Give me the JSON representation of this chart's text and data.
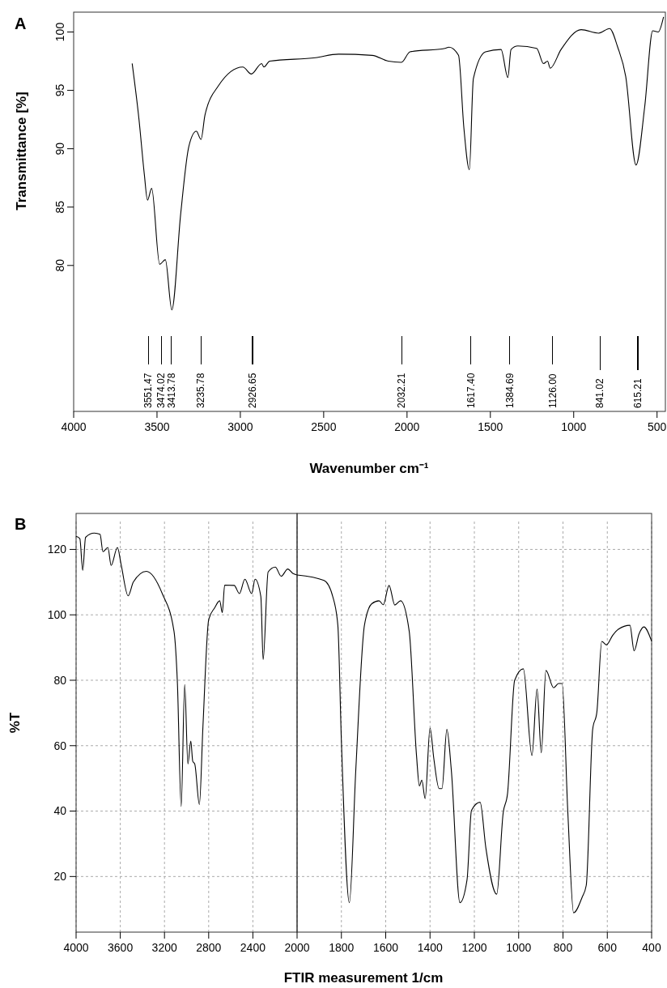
{
  "chart_data": [
    {
      "type": "line",
      "title": "A",
      "xlabel": "Wavenumber cm⁻¹",
      "ylabel": "Transmittance [%]",
      "xlim": [
        4000,
        450
      ],
      "ylim": [
        67.5,
        101.7
      ],
      "xticks": [
        4000,
        3500,
        3000,
        2500,
        2000,
        1500,
        1000,
        500
      ],
      "yticks": [
        80,
        85,
        90,
        95,
        100
      ],
      "grid": false,
      "series": [
        {
          "color": "#000000",
          "x": [
            3649,
            3608,
            3576,
            3557,
            3532,
            3484,
            3450,
            3411,
            3358,
            3309,
            3264,
            3236,
            3212,
            3131,
            2985,
            2934,
            2872,
            2859,
            2824,
            2549,
            2411,
            2209,
            2112,
            2034,
            1982,
            1772,
            1748,
            1691,
            1659,
            1626,
            1602,
            1529,
            1436,
            1395,
            1376,
            1335,
            1222,
            1181,
            1157,
            1141,
            1076,
            955,
            850,
            785,
            736,
            688,
            626,
            574,
            526,
            493,
            461
          ],
          "values": [
            97.3,
            92.5,
            87.8,
            85.6,
            86.6,
            80.1,
            80.5,
            76.2,
            84.4,
            90.2,
            91.5,
            90.8,
            92.9,
            95.4,
            97.0,
            96.4,
            97.3,
            97.0,
            97.5,
            97.8,
            98.1,
            98.0,
            97.5,
            97.4,
            98.3,
            98.6,
            98.7,
            98.0,
            91.8,
            88.2,
            96.0,
            98.3,
            98.5,
            96.1,
            98.5,
            98.8,
            98.6,
            97.3,
            97.5,
            96.9,
            98.5,
            100.2,
            99.9,
            100.3,
            98.7,
            96.2,
            88.6,
            93.6,
            100.1,
            100.0,
            101.3
          ]
        }
      ],
      "ref_lines": [
        {
          "axis": "x",
          "value": 3551.47,
          "label": "3551.47"
        },
        {
          "axis": "x",
          "value": 3474.02,
          "label": "3474.02"
        },
        {
          "axis": "x",
          "value": 3413.78,
          "label": "3413.78"
        },
        {
          "axis": "x",
          "value": 3235.78,
          "label": "3235.78"
        },
        {
          "axis": "x",
          "value": 2926.65,
          "label": "2926.65"
        },
        {
          "axis": "x",
          "value": 2032.21,
          "label": "2032.21"
        },
        {
          "axis": "x",
          "value": 1617.4,
          "label": "1617.40"
        },
        {
          "axis": "x",
          "value": 1384.69,
          "label": "1384.69"
        },
        {
          "axis": "x",
          "value": 1126.0,
          "label": "1126.00"
        },
        {
          "axis": "x",
          "value": 841.02,
          "label": "841.02"
        },
        {
          "axis": "x",
          "value": 615.21,
          "label": "615.21"
        }
      ]
    },
    {
      "type": "line",
      "title": "B",
      "ylabel": "%T",
      "xlim": [
        4000,
        2000
      ],
      "ylim": [
        3,
        131
      ],
      "xticks": [
        4000,
        3600,
        3200,
        2800,
        2400,
        2000
      ],
      "yticks": [
        20,
        40,
        60,
        80,
        100,
        120
      ],
      "grid": true,
      "series": [
        {
          "color": "#000000",
          "x": [
            4000,
            3966,
            3940,
            3914,
            3835,
            3783,
            3757,
            3712,
            3683,
            3626,
            3592,
            3529,
            3482,
            3364,
            3220,
            3114,
            3083,
            3049,
            3017,
            2988,
            2962,
            2944,
            2926,
            2884,
            2852,
            2800,
            2747,
            2700,
            2677,
            2655,
            2569,
            2522,
            2472,
            2411,
            2380,
            2328,
            2307,
            2262,
            2197,
            2144,
            2084,
            2039,
            2000
          ],
          "values": [
            124.0,
            123.3,
            113.6,
            123.7,
            125.0,
            124.6,
            119.3,
            120.6,
            115.1,
            120.6,
            115.3,
            105.8,
            110.0,
            113.3,
            106.5,
            95.0,
            79.1,
            41.4,
            78.7,
            54.4,
            61.4,
            55.2,
            54.4,
            42.0,
            65.8,
            98.5,
            102.1,
            104.3,
            100.7,
            109.1,
            109.0,
            106.5,
            110.9,
            106.5,
            110.9,
            105.6,
            86.3,
            113.1,
            114.6,
            111.8,
            114.0,
            112.7,
            112.2
          ]
        }
      ]
    },
    {
      "type": "line",
      "xlabel": "FTIR measurement 1/cm",
      "xlim": [
        2000,
        400
      ],
      "ylim": [
        3,
        131
      ],
      "xticks": [
        1800,
        1600,
        1400,
        1200,
        1000,
        800,
        600,
        400
      ],
      "yticks": [
        20,
        40,
        60,
        80,
        100,
        120
      ],
      "grid": true,
      "tick_labels": "x",
      "series": [
        {
          "color": "#000000",
          "x": [
            2000,
            1878,
            1839,
            1816,
            1800,
            1764,
            1735,
            1696,
            1663,
            1630,
            1611,
            1585,
            1559,
            1533,
            1494,
            1461,
            1448,
            1437,
            1422,
            1400,
            1383,
            1359,
            1346,
            1324,
            1304,
            1265,
            1233,
            1213,
            1174,
            1148,
            1099,
            1070,
            1050,
            1018,
            979,
            940,
            917,
            898,
            877,
            842,
            820,
            804,
            778,
            752,
            714,
            695,
            666,
            647,
            625,
            604,
            576,
            550,
            498,
            479,
            457,
            435,
            400
          ],
          "values": [
            112.2,
            110.5,
            105.6,
            96.8,
            61.4,
            12.0,
            52.6,
            96.8,
            103.4,
            104.3,
            103.1,
            109.0,
            103.0,
            104.3,
            95.0,
            57.0,
            47.7,
            49.5,
            43.8,
            65.4,
            56.1,
            46.9,
            46.9,
            65.0,
            52.6,
            12.0,
            19.0,
            40.2,
            42.7,
            28.7,
            14.6,
            39.4,
            45.5,
            80.0,
            83.5,
            57.0,
            77.3,
            57.8,
            83.0,
            77.7,
            79.0,
            79.0,
            39.4,
            8.9,
            13.6,
            17.3,
            65.0,
            70.3,
            91.9,
            90.8,
            93.7,
            95.6,
            96.8,
            89.0,
            94.1,
            96.3,
            91.9
          ]
        }
      ]
    }
  ]
}
